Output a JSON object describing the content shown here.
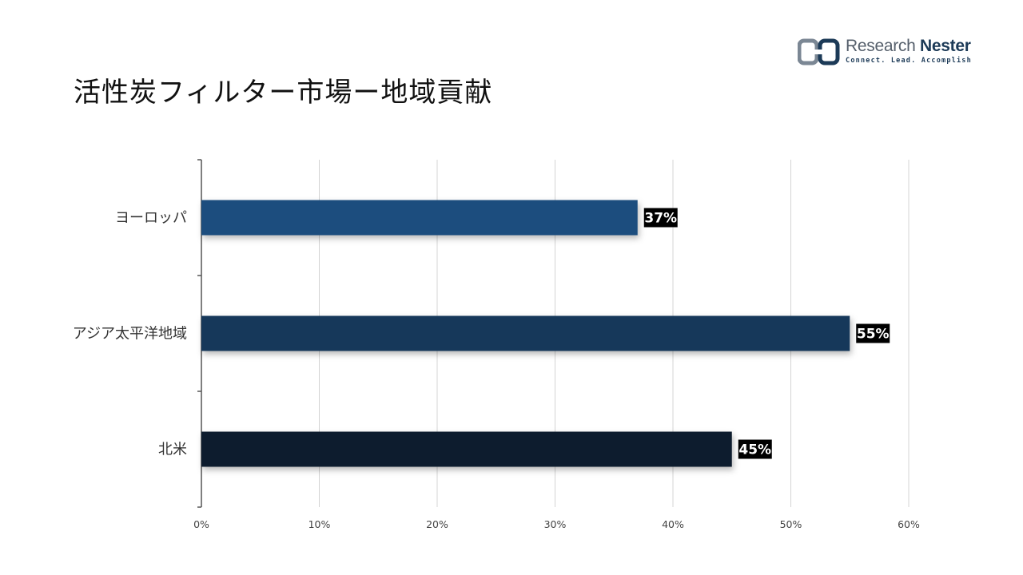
{
  "logo": {
    "name_light": "Research",
    "name_bold": "Nester",
    "tagline": "Connect. Lead. Accomplish"
  },
  "chart_data": {
    "type": "bar",
    "orientation": "horizontal",
    "title": "活性炭フィルター市場ー地域貢献",
    "categories": [
      "ヨーロッパ",
      "アジア太平洋地域",
      "北米"
    ],
    "values": [
      37,
      55,
      45
    ],
    "value_labels": [
      "37%",
      "55%",
      "45%"
    ],
    "colors": [
      "#1f4e7e",
      "#17375a",
      "#0f1f2f"
    ],
    "xlim": [
      0,
      60
    ],
    "xticks": [
      "0%",
      "10%",
      "20%",
      "30%",
      "40%",
      "50%",
      "60%"
    ],
    "grid": true,
    "legend": "none"
  }
}
